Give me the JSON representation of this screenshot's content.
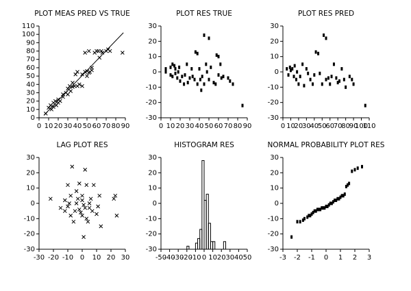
{
  "chart_data": [
    {
      "type": "scatter",
      "title": "PLOT MEAS PRED VS TRUE",
      "marker": "x",
      "color": "#000000",
      "x": [
        7,
        10,
        12,
        13,
        15,
        15,
        17,
        18,
        20,
        20,
        22,
        25,
        25,
        28,
        30,
        32,
        33,
        35,
        37,
        38,
        40,
        40,
        42,
        45,
        45,
        48,
        50,
        50,
        52,
        52,
        53,
        55,
        55,
        58,
        60,
        62,
        63,
        65,
        66,
        70,
        72,
        74,
        87,
        48,
        30,
        35
      ],
      "y": [
        5,
        12,
        15,
        10,
        13,
        18,
        20,
        15,
        18,
        22,
        20,
        25,
        28,
        30,
        35,
        38,
        32,
        37,
        38,
        52,
        55,
        38,
        40,
        38,
        52,
        55,
        50,
        56,
        54,
        80,
        55,
        60,
        57,
        78,
        80,
        80,
        72,
        80,
        78,
        80,
        82,
        80,
        78,
        78,
        28,
        42
      ],
      "fit": {
        "x": [
          5,
          88
        ],
        "y": [
          3,
          102
        ]
      },
      "xlim": [
        0,
        90
      ],
      "xticks": [
        0,
        10,
        20,
        30,
        40,
        50,
        60,
        70,
        80,
        90
      ],
      "ylim": [
        0,
        110
      ],
      "yticks": [
        0,
        10,
        20,
        30,
        40,
        50,
        60,
        70,
        80,
        90,
        100,
        110
      ]
    },
    {
      "type": "scatter",
      "title": "PLOT RES TRUE",
      "marker": "square",
      "color": "#000000",
      "x": [
        5,
        5,
        10,
        10,
        12,
        12,
        14,
        15,
        15,
        17,
        18,
        19,
        20,
        22,
        24,
        25,
        27,
        28,
        30,
        32,
        33,
        35,
        36,
        38,
        38,
        40,
        41,
        42,
        43,
        45,
        45,
        47,
        48,
        50,
        50,
        52,
        55,
        57,
        58,
        60,
        60,
        62,
        63,
        65,
        70,
        72,
        75,
        85
      ],
      "y": [
        0,
        2,
        3,
        -2,
        -3,
        5,
        4,
        2,
        -1,
        -4,
        0,
        3,
        -6,
        -3,
        -8,
        -2,
        5,
        -7,
        -4,
        2,
        -3,
        -5,
        13,
        12,
        -8,
        2,
        -5,
        -12,
        -3,
        -8,
        24,
        5,
        0,
        22,
        -5,
        3,
        -7,
        -8,
        11,
        10,
        -2,
        5,
        -4,
        -3,
        -4,
        -6,
        -8,
        -22
      ],
      "xlim": [
        0,
        90
      ],
      "xticks": [
        0,
        10,
        20,
        30,
        40,
        50,
        60,
        70,
        80,
        90
      ],
      "ylim": [
        -30,
        30
      ],
      "yticks": [
        -30,
        -20,
        -10,
        0,
        10,
        20,
        30
      ]
    },
    {
      "type": "scatter",
      "title": "PLOT RES PRED",
      "marker": "square",
      "color": "#000000",
      "x": [
        5,
        7,
        9,
        10,
        12,
        14,
        15,
        17,
        18,
        20,
        22,
        25,
        27,
        30,
        32,
        35,
        38,
        40,
        42,
        45,
        47,
        50,
        52,
        55,
        55,
        58,
        60,
        62,
        65,
        68,
        70,
        72,
        75,
        78,
        80,
        85,
        88,
        90,
        105
      ],
      "y": [
        2,
        -2,
        3,
        1,
        2,
        -3,
        4,
        -5,
        0,
        -8,
        -3,
        5,
        -9,
        2,
        -1,
        -5,
        -8,
        -2,
        13,
        12,
        -1,
        -8,
        24,
        22,
        -5,
        -4,
        -8,
        -3,
        5,
        -4,
        -7,
        -6,
        2,
        -5,
        -10,
        -3,
        -5,
        -8,
        -22
      ],
      "xlim": [
        0,
        110
      ],
      "xticks": [
        0,
        10,
        20,
        30,
        40,
        50,
        60,
        70,
        80,
        90,
        100,
        110
      ],
      "ylim": [
        -30,
        30
      ],
      "yticks": [
        -30,
        -20,
        -10,
        0,
        10,
        20,
        30
      ]
    },
    {
      "type": "scatter",
      "title": "LAG PLOT RES",
      "marker": "x",
      "color": "#000000",
      "x": [
        -22,
        -15,
        -12,
        -10,
        -8,
        -7,
        -5,
        -4,
        -3,
        -2,
        0,
        0,
        1,
        2,
        3,
        3,
        5,
        5,
        7,
        8,
        10,
        12,
        13,
        22,
        23,
        24,
        -10,
        -6,
        -2,
        2,
        -12,
        -4,
        0,
        4,
        6,
        -8,
        11,
        -1,
        1,
        -9
      ],
      "y": [
        3,
        -3,
        2,
        12,
        -8,
        24,
        -5,
        0,
        3,
        13,
        -8,
        5,
        -22,
        22,
        12,
        -10,
        -3,
        0,
        -5,
        12,
        -7,
        5,
        -15,
        3,
        5,
        -8,
        -2,
        -12,
        -4,
        -3,
        -5,
        8,
        2,
        -12,
        3,
        5,
        -2,
        -6,
        -1,
        0
      ],
      "xlim": [
        -30,
        30
      ],
      "xticks": [
        -30,
        -20,
        -10,
        0,
        10,
        20,
        30
      ],
      "ylim": [
        -30,
        30
      ],
      "yticks": [
        -30,
        -20,
        -10,
        0,
        10,
        20,
        30
      ]
    },
    {
      "type": "histogram",
      "title": "HISTOGRAM RES",
      "color": "#000000",
      "bins": [
        -20,
        -17.5,
        -15,
        -12.5,
        -10,
        -7.5,
        -5,
        -2.5,
        0,
        2.5,
        5,
        7.5,
        10,
        12.5,
        15,
        17.5,
        20,
        22.5,
        25,
        27.5
      ],
      "values": [
        -28,
        -30,
        -30,
        -30,
        -26,
        -23,
        -17,
        28,
        2,
        6,
        -13,
        -25,
        -25,
        -30,
        -30,
        -30,
        -30,
        -25,
        -30
      ],
      "xlim": [
        -50,
        50
      ],
      "xticks": [
        -50,
        -40,
        -30,
        -20,
        -10,
        0,
        10,
        20,
        30,
        40,
        50
      ],
      "ylim": [
        -30,
        30
      ],
      "yticks": [
        -30,
        -20,
        -10,
        0,
        10,
        20,
        30
      ]
    },
    {
      "type": "scatter",
      "title": "NORMAL PROBABILITY PLOT RES",
      "marker": "square",
      "color": "#000000",
      "x": [
        -2.4,
        -2.0,
        -1.8,
        -1.6,
        -1.5,
        -1.3,
        -1.2,
        -1.1,
        -1.0,
        -0.9,
        -0.8,
        -0.7,
        -0.6,
        -0.5,
        -0.4,
        -0.3,
        -0.2,
        -0.1,
        0,
        0.1,
        0.2,
        0.3,
        0.4,
        0.5,
        0.6,
        0.7,
        0.8,
        0.9,
        1.0,
        1.1,
        1.2,
        1.3,
        1.4,
        1.5,
        1.6,
        1.8,
        2.0,
        2.2,
        2.5
      ],
      "y": [
        -22,
        -12,
        -12,
        -11,
        -10,
        -9,
        -8,
        -8,
        -7,
        -6,
        -5,
        -5,
        -4,
        -4,
        -4,
        -3,
        -3,
        -3,
        -2,
        -2,
        -1,
        0,
        0,
        1,
        2,
        2,
        3,
        3,
        4,
        5,
        5,
        6,
        11,
        12,
        13,
        21,
        22,
        23,
        24
      ],
      "xlim": [
        -3,
        3
      ],
      "xticks": [
        -3,
        -2,
        -1,
        0,
        1,
        2,
        3
      ],
      "ylim": [
        -30,
        30
      ],
      "yticks": [
        -30,
        -20,
        -10,
        0,
        10,
        20,
        30
      ]
    }
  ]
}
